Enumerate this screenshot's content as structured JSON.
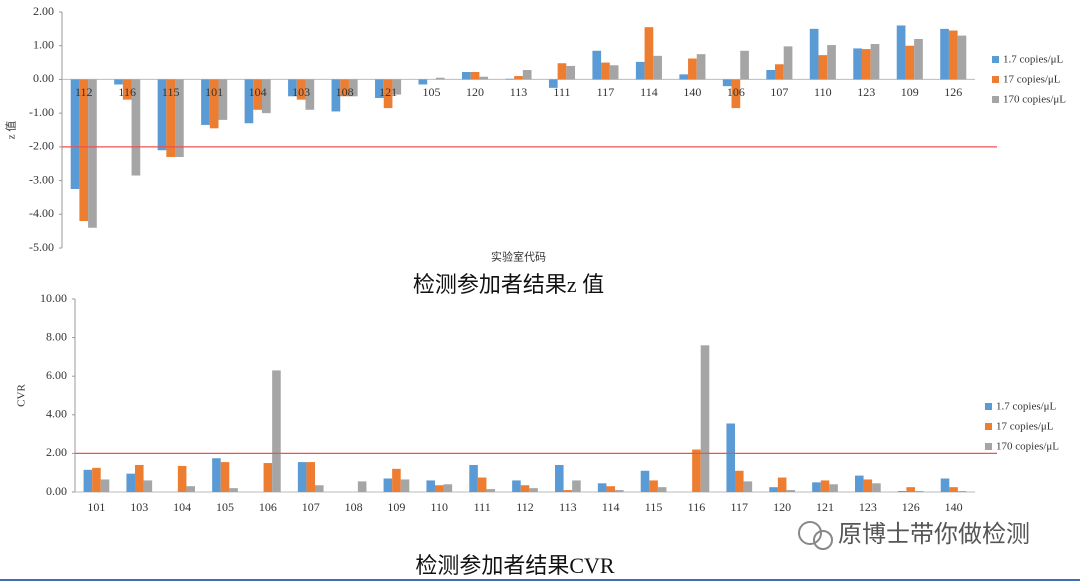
{
  "chart_data": [
    {
      "type": "bar",
      "title": "检测参加者结果z 值",
      "xlabel": "实验室代码",
      "ylabel": "z 值",
      "categories": [
        "112",
        "116",
        "115",
        "101",
        "104",
        "103",
        "108",
        "121",
        "105",
        "120",
        "113",
        "111",
        "117",
        "114",
        "140",
        "106",
        "107",
        "110",
        "123",
        "109",
        "126"
      ],
      "series": [
        {
          "name": "1.7 copies/μL",
          "color": "#5b9bd5",
          "values": [
            -3.25,
            -0.15,
            -2.1,
            -1.35,
            -1.3,
            -0.5,
            -0.95,
            -0.55,
            -0.15,
            0.22,
            0.02,
            -0.25,
            0.85,
            0.52,
            0.15,
            -0.2,
            0.28,
            1.5,
            0.92,
            1.6,
            1.5
          ]
        },
        {
          "name": "17 copies/μL",
          "color": "#ed7d31",
          "values": [
            -4.2,
            -0.6,
            -2.3,
            -1.45,
            -0.9,
            -0.6,
            -0.5,
            -0.85,
            0,
            0.22,
            0.1,
            0.48,
            0.5,
            1.55,
            0.62,
            -0.85,
            0.45,
            0.72,
            0.9,
            1.0,
            1.45
          ]
        },
        {
          "name": "170 copies/μL",
          "color": "#a5a5a5",
          "values": [
            -4.4,
            -2.85,
            -2.3,
            -1.2,
            -1.0,
            -0.9,
            -0.5,
            -0.45,
            0.05,
            0.08,
            0.28,
            0.4,
            0.42,
            0.7,
            0.75,
            0.85,
            0.98,
            1.02,
            1.05,
            1.2,
            1.3
          ]
        }
      ],
      "ylim": [
        -5,
        2
      ],
      "yticks": [
        {
          "value": -5,
          "label": "-5.00"
        },
        {
          "value": -4,
          "label": "-4.00"
        },
        {
          "value": -3,
          "label": "-3.00"
        },
        {
          "value": -2,
          "label": "-2.00"
        },
        {
          "value": -1,
          "label": "-1.00"
        },
        {
          "value": 0,
          "label": "0.00"
        },
        {
          "value": 1,
          "label": "1.00"
        },
        {
          "value": 2,
          "label": "2.00"
        }
      ],
      "reference_lines": [
        {
          "value": -2,
          "color": "#f05050"
        }
      ],
      "legend": "right"
    },
    {
      "type": "bar",
      "title": "检测参加者结果CVR",
      "ylabel": "CVR",
      "categories": [
        "101",
        "103",
        "104",
        "105",
        "106",
        "107",
        "108",
        "109",
        "110",
        "111",
        "112",
        "113",
        "114",
        "115",
        "116",
        "117",
        "120",
        "121",
        "123",
        "126",
        "140"
      ],
      "series": [
        {
          "name": "1.7 copies/μL",
          "color": "#5b9bd5",
          "values": [
            1.15,
            0.95,
            null,
            1.75,
            null,
            1.55,
            null,
            0.7,
            0.6,
            1.4,
            0.6,
            1.4,
            0.45,
            1.1,
            null,
            3.55,
            0.25,
            0.5,
            0.85,
            0.05,
            0.7
          ]
        },
        {
          "name": "17 copies/μL",
          "color": "#ed7d31",
          "values": [
            1.25,
            1.4,
            1.35,
            1.55,
            1.5,
            1.55,
            null,
            1.2,
            0.35,
            0.75,
            0.35,
            0.1,
            0.3,
            0.6,
            2.2,
            1.1,
            0.75,
            0.6,
            0.65,
            0.25,
            0.25
          ]
        },
        {
          "name": "170 copies/μL",
          "color": "#a5a5a5",
          "values": [
            0.65,
            0.6,
            0.3,
            0.2,
            6.3,
            0.35,
            0.55,
            0.65,
            0.4,
            0.15,
            0.2,
            0.6,
            0.1,
            0.25,
            7.6,
            0.55,
            0.1,
            0.4,
            0.45,
            0.05,
            0.05
          ]
        }
      ],
      "ylim": [
        0,
        10
      ],
      "yticks": [
        {
          "value": 0,
          "label": "0.00"
        },
        {
          "value": 2,
          "label": "2.00"
        },
        {
          "value": 4,
          "label": "4.00"
        },
        {
          "value": 6,
          "label": "6.00"
        },
        {
          "value": 8,
          "label": "8.00"
        },
        {
          "value": 10,
          "label": "10.00"
        }
      ],
      "reference_lines": [
        {
          "value": 2,
          "color": "#f05050"
        }
      ],
      "legend": "right"
    }
  ],
  "watermark": "原博士带你做检测"
}
